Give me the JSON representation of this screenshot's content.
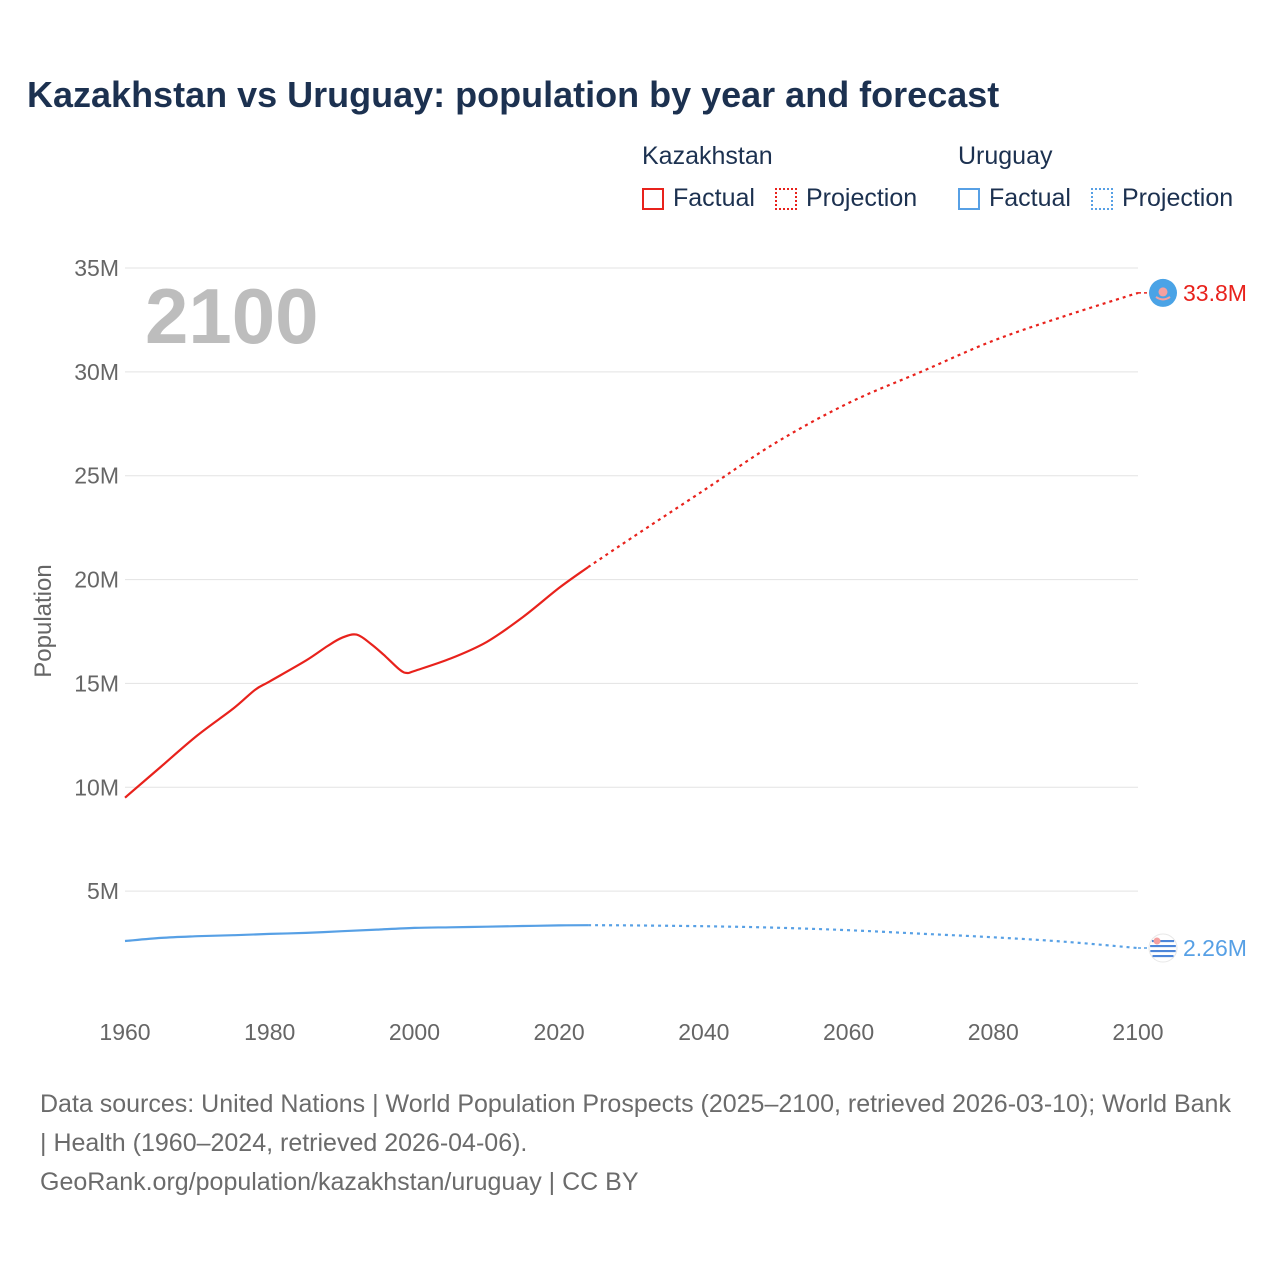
{
  "title": "Kazakhstan vs Uruguay: population by year and forecast",
  "current_year_badge": "2100",
  "legend": {
    "groups": [
      {
        "name": "Kazakhstan",
        "color": "#e8221c",
        "factual_label": "Factual",
        "projection_label": "Projection"
      },
      {
        "name": "Uruguay",
        "color": "#57a0e5",
        "factual_label": "Factual",
        "projection_label": "Projection"
      }
    ]
  },
  "chart_data": {
    "type": "line",
    "title": "Kazakhstan vs Uruguay: population by year and forecast",
    "xlabel": "",
    "ylabel": "Population",
    "xlim": [
      1960,
      2100
    ],
    "ylim": [
      0,
      35000000
    ],
    "x_ticks": [
      1960,
      1980,
      2000,
      2020,
      2040,
      2060,
      2080,
      2100
    ],
    "y_ticks": [
      {
        "value": 5000000,
        "label": "5M"
      },
      {
        "value": 10000000,
        "label": "10M"
      },
      {
        "value": 15000000,
        "label": "15M"
      },
      {
        "value": 20000000,
        "label": "20M"
      },
      {
        "value": 25000000,
        "label": "25M"
      },
      {
        "value": 30000000,
        "label": "30M"
      },
      {
        "value": 35000000,
        "label": "35M"
      }
    ],
    "grid": true,
    "series": [
      {
        "name": "Kazakhstan",
        "color": "#e8221c",
        "end_label": "33.8M",
        "factual": {
          "x": [
            1960,
            1965,
            1970,
            1975,
            1978,
            1980,
            1985,
            1988,
            1990,
            1992,
            1994,
            1996,
            1998,
            1999,
            2000,
            2005,
            2010,
            2015,
            2020,
            2024
          ],
          "y": [
            9500000,
            11000000,
            12500000,
            13800000,
            14700000,
            15100000,
            16100000,
            16800000,
            17200000,
            17350000,
            16900000,
            16300000,
            15650000,
            15500000,
            15600000,
            16200000,
            17000000,
            18200000,
            19600000,
            20600000
          ]
        },
        "projection": {
          "x": [
            2024,
            2030,
            2040,
            2050,
            2060,
            2070,
            2080,
            2090,
            2100
          ],
          "y": [
            20600000,
            22000000,
            24300000,
            26600000,
            28500000,
            30000000,
            31500000,
            32700000,
            33800000
          ]
        }
      },
      {
        "name": "Uruguay",
        "color": "#57a0e5",
        "end_label": "2.26M",
        "factual": {
          "x": [
            1960,
            1965,
            1970,
            1975,
            1980,
            1985,
            1990,
            1995,
            2000,
            2005,
            2010,
            2015,
            2020,
            2024
          ],
          "y": [
            2600000,
            2750000,
            2830000,
            2880000,
            2940000,
            2990000,
            3070000,
            3150000,
            3230000,
            3260000,
            3290000,
            3320000,
            3350000,
            3360000
          ]
        },
        "projection": {
          "x": [
            2024,
            2030,
            2040,
            2050,
            2060,
            2070,
            2080,
            2090,
            2100
          ],
          "y": [
            3360000,
            3350000,
            3310000,
            3240000,
            3120000,
            2950000,
            2780000,
            2560000,
            2260000
          ]
        }
      }
    ]
  },
  "footer": {
    "sources": "Data sources: United Nations | World Population Prospects (2025–2100, retrieved 2026-03-10); World Bank | Health (1960–2024, retrieved 2026-04-06).",
    "credit": "GeoRank.org/population/kazakhstan/uruguay | CC BY"
  }
}
